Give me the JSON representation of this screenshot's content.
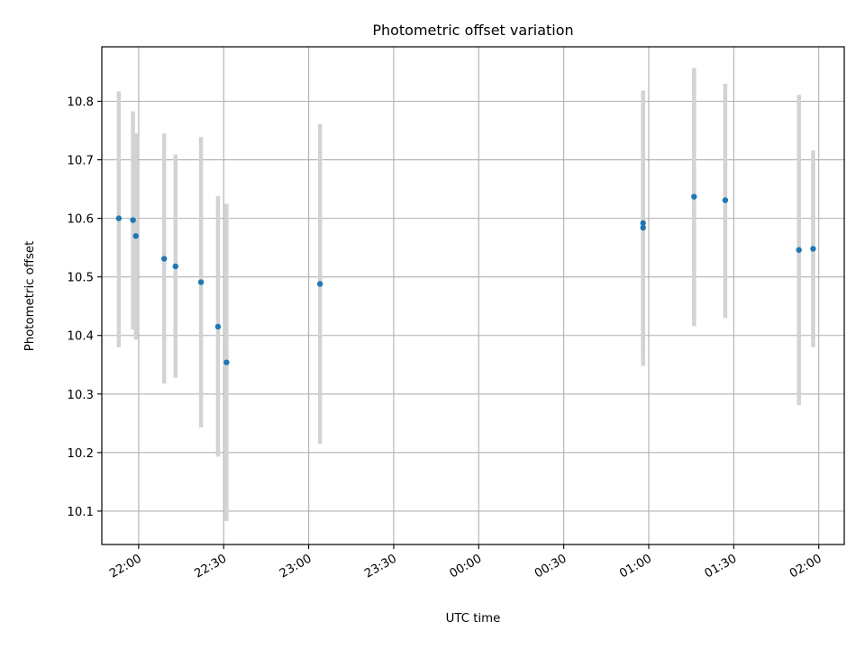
{
  "chart_data": {
    "type": "scatter",
    "title": "Photometric offset variation",
    "xlabel": "UTC time",
    "ylabel": "Photometric offset",
    "x_ticks": [
      "22:00",
      "22:30",
      "23:00",
      "23:30",
      "00:00",
      "00:30",
      "01:00",
      "01:30",
      "02:00"
    ],
    "y_ticks": [
      "10.1",
      "10.2",
      "10.3",
      "10.4",
      "10.5",
      "10.6",
      "10.7",
      "10.8"
    ],
    "xlim": [
      "21:47",
      "02:09"
    ],
    "ylim": [
      10.043,
      10.893
    ],
    "grid": true,
    "marker_color": "#1f77b4",
    "errorbar_color": "#d3d3d3",
    "series": [
      {
        "x": [
          "21:53",
          "21:58",
          "21:59",
          "22:09",
          "22:13",
          "22:22",
          "22:28",
          "22:31",
          "23:04",
          "00:58",
          "00:58",
          "01:16",
          "01:27",
          "01:53",
          "01:58"
        ],
        "values": [
          10.6,
          10.597,
          10.57,
          10.531,
          10.518,
          10.491,
          10.415,
          10.354,
          10.488,
          10.584,
          10.592,
          10.637,
          10.631,
          10.546,
          10.548
        ],
        "yerr_low": [
          10.38,
          10.41,
          10.393,
          10.318,
          10.328,
          10.243,
          10.193,
          10.083,
          10.215,
          10.348,
          10.365,
          10.416,
          10.43,
          10.281,
          10.38
        ],
        "yerr_high": [
          10.817,
          10.783,
          10.745,
          10.745,
          10.709,
          10.739,
          10.638,
          10.625,
          10.761,
          10.818,
          10.818,
          10.857,
          10.83,
          10.811,
          10.716
        ]
      }
    ]
  }
}
